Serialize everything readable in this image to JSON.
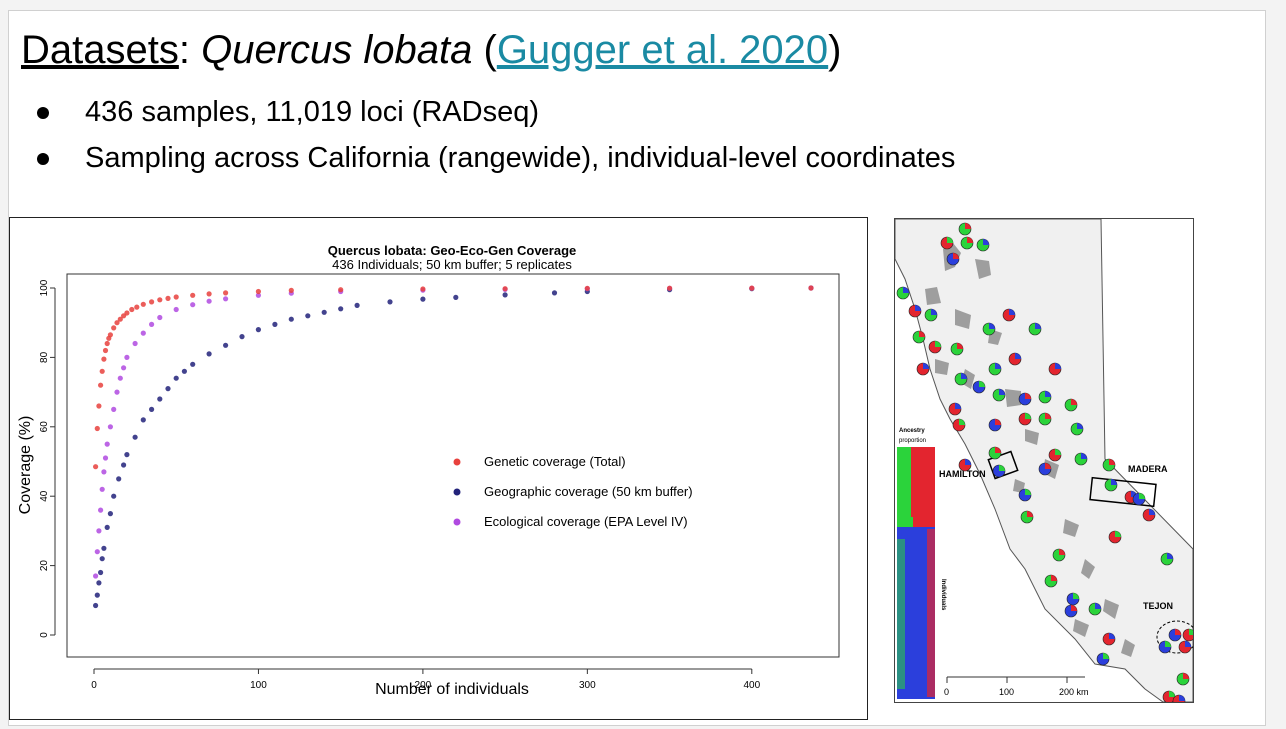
{
  "slide": {
    "title_prefix": "Datasets",
    "title_colon": ": ",
    "title_species": "Quercus lobata",
    "title_open": " (",
    "title_link": "Gugger et al. 2020",
    "title_close": ")",
    "bullets": [
      "436 samples, 11,019 loci (RADseq)",
      "Sampling across California (rangewide), individual-level coordinates"
    ]
  },
  "chart_data": {
    "type": "scatter",
    "title": "Quercus lobata: Geo-Eco-Gen Coverage",
    "subtitle": "436 Individuals; 50 km buffer; 5 replicates",
    "xlabel": "Number of individuals",
    "ylabel": "Coverage (%)",
    "xlim": [
      0,
      436
    ],
    "ylim": [
      0,
      100
    ],
    "xticks": [
      0,
      100,
      200,
      300,
      400
    ],
    "yticks": [
      0,
      20,
      40,
      60,
      80,
      100
    ],
    "legend_position": "center-right",
    "series": [
      {
        "name": "Genetic coverage (Total)",
        "color": "#e8413d",
        "x": [
          1,
          2,
          3,
          4,
          5,
          6,
          7,
          8,
          9,
          10,
          12,
          14,
          16,
          18,
          20,
          23,
          26,
          30,
          35,
          40,
          45,
          50,
          60,
          70,
          80,
          100,
          120,
          150,
          200,
          250,
          300,
          350,
          400,
          436
        ],
        "y": [
          48.5,
          59.5,
          66,
          72,
          76,
          79.5,
          82,
          84,
          85.5,
          86.5,
          88.5,
          90,
          91,
          92,
          92.8,
          93.8,
          94.5,
          95.3,
          96,
          96.6,
          97,
          97.4,
          97.9,
          98.3,
          98.6,
          99,
          99.3,
          99.5,
          99.7,
          99.8,
          99.9,
          99.95,
          99.98,
          100
        ]
      },
      {
        "name": "Geographic coverage (50 km buffer)",
        "color": "#22227a",
        "x": [
          1,
          2,
          3,
          4,
          5,
          6,
          8,
          10,
          12,
          15,
          18,
          20,
          25,
          30,
          35,
          40,
          45,
          50,
          55,
          60,
          70,
          80,
          90,
          100,
          110,
          120,
          130,
          140,
          150,
          160,
          180,
          200,
          220,
          250,
          280,
          300,
          350,
          400,
          436
        ],
        "y": [
          8.5,
          11.5,
          15,
          18,
          22,
          25,
          31,
          35,
          40,
          45,
          49,
          52,
          57,
          62,
          65,
          68,
          71,
          74,
          76,
          78,
          81,
          83.5,
          86,
          88,
          89.5,
          91,
          92,
          93,
          94,
          95,
          96,
          96.8,
          97.3,
          98,
          98.6,
          99,
          99.5,
          99.8,
          100
        ]
      },
      {
        "name": "Ecological coverage (EPA Level IV)",
        "color": "#b04ae0",
        "x": [
          1,
          2,
          3,
          4,
          5,
          6,
          7,
          8,
          10,
          12,
          14,
          16,
          18,
          20,
          25,
          30,
          35,
          40,
          50,
          60,
          70,
          80,
          100,
          120,
          150,
          200,
          250,
          300,
          350,
          400,
          436
        ],
        "y": [
          17,
          24,
          30,
          36,
          42,
          47,
          51,
          55,
          60,
          65,
          70,
          74,
          77,
          80,
          84,
          87,
          89.5,
          91.5,
          93.8,
          95.2,
          96.2,
          96.9,
          97.9,
          98.5,
          99,
          99.4,
          99.6,
          99.8,
          99.9,
          99.95,
          100
        ]
      }
    ]
  },
  "map": {
    "ancestry_label_1": "Ancestry",
    "ancestry_label_2": "proportion",
    "individuals_label": "Individuals",
    "region_hamilton": "HAMILTON",
    "region_madera": "MADERA",
    "region_tejon": "TEJON",
    "scale_ticks": [
      "0",
      "100",
      "200 km"
    ],
    "colors": {
      "red": "#e3252f",
      "green": "#2bd33b",
      "blue": "#2b3fdc",
      "land": "#f0f0f0",
      "ocean": "#ffffff",
      "terrain": "#8a8a8a"
    }
  }
}
